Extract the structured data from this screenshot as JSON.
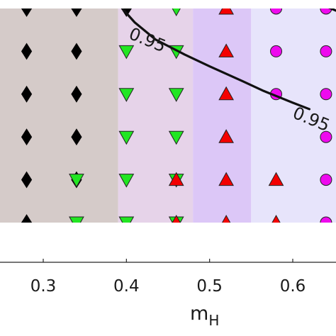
{
  "chart_data": {
    "type": "scatter",
    "xlabel": "m",
    "xlabel_subscript": "H",
    "xlim": [
      0.248,
      0.652
    ],
    "ylim": [
      0,
      1
    ],
    "x_ticks": [
      "0.3",
      "0.4",
      "0.5",
      "0.6"
    ],
    "x_tick_values": [
      0.3,
      0.4,
      0.5,
      0.6
    ],
    "grid": false,
    "legend": "none",
    "region_colors": [
      "#d5cbc9",
      "#e6d3e9",
      "#dcc7f7",
      "#e7e4fb"
    ],
    "regions": [
      {
        "from": 0.248,
        "to": 0.39,
        "color": "#d5cbc9"
      },
      {
        "from": 0.39,
        "to": 0.48,
        "color": "#e6d3e9"
      },
      {
        "from": 0.48,
        "to": 0.55,
        "color": "#dcc7f7"
      },
      {
        "from": 0.55,
        "to": 0.652,
        "color": "#e7e4fb"
      }
    ],
    "series": [
      {
        "marker": "diamond",
        "color": "#000000",
        "x": [
          0.28,
          0.28,
          0.28,
          0.28,
          0.28,
          0.28,
          0.34,
          0.34,
          0.34,
          0.34,
          0.34,
          0.4
        ],
        "y": [
          1.0,
          0.8,
          0.6,
          0.4,
          0.2,
          0.0,
          1.0,
          0.8,
          0.6,
          0.4,
          0.2,
          1.0
        ]
      },
      {
        "marker": "triangle-down",
        "color": "#22e622",
        "x": [
          0.34,
          0.34,
          0.4,
          0.4,
          0.4,
          0.4,
          0.4,
          0.46,
          0.46,
          0.46,
          0.46,
          0.46,
          0.46
        ],
        "y": [
          0.2,
          0.0,
          0.8,
          0.6,
          0.4,
          0.2,
          0.0,
          1.0,
          0.8,
          0.6,
          0.4,
          0.2,
          0.0
        ]
      },
      {
        "marker": "triangle-up",
        "color": "#f40000",
        "x": [
          0.46,
          0.46,
          0.52,
          0.52,
          0.52,
          0.52,
          0.52,
          0.52,
          0.58,
          0.58
        ],
        "y": [
          0.2,
          0.0,
          1.0,
          0.8,
          0.6,
          0.4,
          0.2,
          0.0,
          0.2,
          0.0
        ]
      },
      {
        "marker": "circle",
        "color": "#ee0aee",
        "x": [
          0.58,
          0.58,
          0.58,
          0.64,
          0.64,
          0.64,
          0.64,
          0.64,
          0.64
        ],
        "y": [
          1.0,
          0.8,
          0.6,
          1.0,
          0.8,
          0.6,
          0.4,
          0.2,
          0.0
        ]
      }
    ],
    "contours": [
      {
        "label": "0.95",
        "x": [
          0.395,
          0.41,
          0.435,
          0.47,
          0.5,
          0.54,
          0.565,
          0.6,
          0.62
        ],
        "y": [
          1.0,
          0.935,
          0.855,
          0.785,
          0.73,
          0.66,
          0.615,
          0.56,
          0.53
        ]
      },
      {
        "label": "0.95",
        "x": [
          0.628,
          0.64,
          0.652
        ],
        "y": [
          1.04,
          1.01,
          0.99
        ]
      }
    ],
    "contour_labels": [
      {
        "text": "0.95",
        "x": 0.425,
        "y": 0.85
      },
      {
        "text": "0.95",
        "x": 0.622,
        "y": 0.48
      }
    ]
  }
}
